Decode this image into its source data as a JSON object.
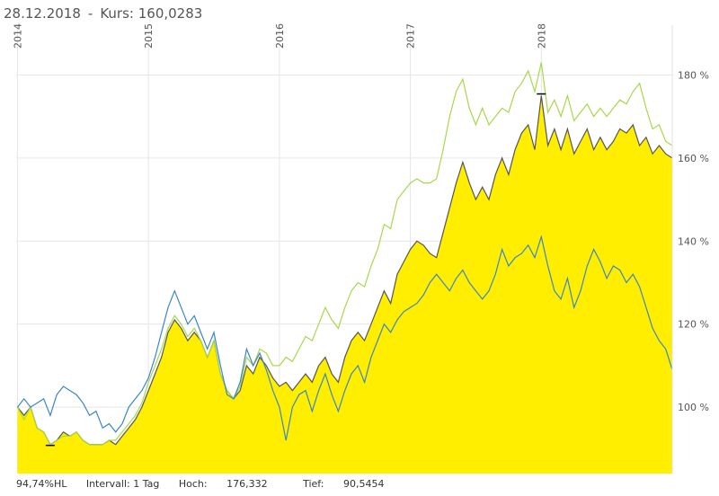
{
  "header": {
    "date": "28.12.2018",
    "separator": "-",
    "kurs_label": "Kurs:",
    "kurs_value": "160,0283"
  },
  "footer": {
    "hl_label": "94,74%HL",
    "interval": "Intervall: 1 Tag",
    "high_label": "Hoch:",
    "high_value": "176,332",
    "low_label": "Tief:",
    "low_value": "90,5454"
  },
  "chart_data": {
    "type": "area",
    "x_ticks": [
      "2014",
      "2015",
      "2016",
      "2017",
      "2018"
    ],
    "y_ticks": [
      "100 %",
      "120 %",
      "140 %",
      "160 %",
      "180 %"
    ],
    "ylim": [
      84,
      192
    ],
    "xlim": [
      2013.99,
      2019.0
    ],
    "grid": true,
    "colors": {
      "area_fill": "#ffee00",
      "area_line": "#555555",
      "green": "#a8d84a",
      "blue": "#3a86c8",
      "grid": "#e6e6e6"
    },
    "series": [
      {
        "style": "area",
        "points": [
          [
            2014.0,
            100
          ],
          [
            2014.05,
            98
          ],
          [
            2014.1,
            100
          ],
          [
            2014.15,
            95
          ],
          [
            2014.2,
            94
          ],
          [
            2014.25,
            91
          ],
          [
            2014.3,
            92
          ],
          [
            2014.35,
            94
          ],
          [
            2014.4,
            93
          ],
          [
            2014.45,
            94
          ],
          [
            2014.5,
            92
          ],
          [
            2014.55,
            91
          ],
          [
            2014.6,
            91
          ],
          [
            2014.65,
            91
          ],
          [
            2014.7,
            92
          ],
          [
            2014.75,
            91
          ],
          [
            2014.8,
            93
          ],
          [
            2014.85,
            95
          ],
          [
            2014.9,
            97
          ],
          [
            2014.95,
            100
          ],
          [
            2015.0,
            104
          ],
          [
            2015.05,
            108
          ],
          [
            2015.1,
            112
          ],
          [
            2015.15,
            118
          ],
          [
            2015.2,
            121
          ],
          [
            2015.25,
            119
          ],
          [
            2015.3,
            116
          ],
          [
            2015.35,
            118
          ],
          [
            2015.4,
            116
          ],
          [
            2015.45,
            112
          ],
          [
            2015.5,
            116
          ],
          [
            2015.55,
            108
          ],
          [
            2015.6,
            104
          ],
          [
            2015.65,
            102
          ],
          [
            2015.7,
            104
          ],
          [
            2015.75,
            110
          ],
          [
            2015.8,
            108
          ],
          [
            2015.85,
            112
          ],
          [
            2015.9,
            110
          ],
          [
            2015.95,
            107
          ],
          [
            2016.0,
            105
          ],
          [
            2016.05,
            106
          ],
          [
            2016.1,
            104
          ],
          [
            2016.15,
            106
          ],
          [
            2016.2,
            108
          ],
          [
            2016.25,
            106
          ],
          [
            2016.3,
            110
          ],
          [
            2016.35,
            112
          ],
          [
            2016.4,
            108
          ],
          [
            2016.45,
            106
          ],
          [
            2016.5,
            112
          ],
          [
            2016.55,
            116
          ],
          [
            2016.6,
            118
          ],
          [
            2016.65,
            116
          ],
          [
            2016.7,
            120
          ],
          [
            2016.75,
            124
          ],
          [
            2016.8,
            128
          ],
          [
            2016.85,
            125
          ],
          [
            2016.9,
            132
          ],
          [
            2016.95,
            135
          ],
          [
            2017.0,
            138
          ],
          [
            2017.05,
            140
          ],
          [
            2017.1,
            139
          ],
          [
            2017.15,
            137
          ],
          [
            2017.2,
            136
          ],
          [
            2017.25,
            142
          ],
          [
            2017.3,
            148
          ],
          [
            2017.35,
            154
          ],
          [
            2017.4,
            159
          ],
          [
            2017.45,
            154
          ],
          [
            2017.5,
            150
          ],
          [
            2017.55,
            153
          ],
          [
            2017.6,
            150
          ],
          [
            2017.65,
            156
          ],
          [
            2017.7,
            160
          ],
          [
            2017.75,
            156
          ],
          [
            2017.8,
            162
          ],
          [
            2017.85,
            166
          ],
          [
            2017.9,
            168
          ],
          [
            2017.95,
            162
          ],
          [
            2018.0,
            175
          ],
          [
            2018.05,
            163
          ],
          [
            2018.1,
            167
          ],
          [
            2018.15,
            162
          ],
          [
            2018.2,
            167
          ],
          [
            2018.25,
            161
          ],
          [
            2018.3,
            164
          ],
          [
            2018.35,
            167
          ],
          [
            2018.4,
            162
          ],
          [
            2018.45,
            165
          ],
          [
            2018.5,
            162
          ],
          [
            2018.55,
            164
          ],
          [
            2018.6,
            167
          ],
          [
            2018.65,
            166
          ],
          [
            2018.7,
            168
          ],
          [
            2018.75,
            163
          ],
          [
            2018.8,
            165
          ],
          [
            2018.85,
            161
          ],
          [
            2018.9,
            163
          ],
          [
            2018.95,
            161
          ],
          [
            2019.0,
            160
          ]
        ]
      },
      {
        "style": "line",
        "points": [
          [
            2014.0,
            100
          ],
          [
            2014.05,
            97
          ],
          [
            2014.1,
            100
          ],
          [
            2014.15,
            95
          ],
          [
            2014.2,
            94
          ],
          [
            2014.25,
            91
          ],
          [
            2014.3,
            92
          ],
          [
            2014.35,
            93
          ],
          [
            2014.4,
            93
          ],
          [
            2014.45,
            94
          ],
          [
            2014.5,
            92
          ],
          [
            2014.55,
            91
          ],
          [
            2014.6,
            91
          ],
          [
            2014.65,
            91
          ],
          [
            2014.7,
            92
          ],
          [
            2014.75,
            92
          ],
          [
            2014.8,
            94
          ],
          [
            2014.85,
            96
          ],
          [
            2014.9,
            98
          ],
          [
            2014.95,
            101
          ],
          [
            2015.0,
            106
          ],
          [
            2015.05,
            110
          ],
          [
            2015.1,
            114
          ],
          [
            2015.15,
            119
          ],
          [
            2015.2,
            122
          ],
          [
            2015.25,
            120
          ],
          [
            2015.3,
            117
          ],
          [
            2015.35,
            119
          ],
          [
            2015.4,
            116
          ],
          [
            2015.45,
            112
          ],
          [
            2015.5,
            116
          ],
          [
            2015.55,
            108
          ],
          [
            2015.6,
            104
          ],
          [
            2015.65,
            102
          ],
          [
            2015.7,
            105
          ],
          [
            2015.75,
            112
          ],
          [
            2015.8,
            110
          ],
          [
            2015.85,
            114
          ],
          [
            2015.9,
            113
          ],
          [
            2015.95,
            110
          ],
          [
            2016.0,
            110
          ],
          [
            2016.05,
            112
          ],
          [
            2016.1,
            111
          ],
          [
            2016.15,
            114
          ],
          [
            2016.2,
            117
          ],
          [
            2016.25,
            116
          ],
          [
            2016.3,
            120
          ],
          [
            2016.35,
            124
          ],
          [
            2016.4,
            121
          ],
          [
            2016.45,
            119
          ],
          [
            2016.5,
            124
          ],
          [
            2016.55,
            128
          ],
          [
            2016.6,
            130
          ],
          [
            2016.65,
            129
          ],
          [
            2016.7,
            134
          ],
          [
            2016.75,
            138
          ],
          [
            2016.8,
            144
          ],
          [
            2016.85,
            143
          ],
          [
            2016.9,
            150
          ],
          [
            2016.95,
            152
          ],
          [
            2017.0,
            154
          ],
          [
            2017.05,
            155
          ],
          [
            2017.1,
            154
          ],
          [
            2017.15,
            154
          ],
          [
            2017.2,
            155
          ],
          [
            2017.25,
            162
          ],
          [
            2017.3,
            170
          ],
          [
            2017.35,
            176
          ],
          [
            2017.4,
            179
          ],
          [
            2017.45,
            172
          ],
          [
            2017.5,
            168
          ],
          [
            2017.55,
            172
          ],
          [
            2017.6,
            168
          ],
          [
            2017.65,
            170
          ],
          [
            2017.7,
            172
          ],
          [
            2017.75,
            171
          ],
          [
            2017.8,
            176
          ],
          [
            2017.85,
            178
          ],
          [
            2017.9,
            181
          ],
          [
            2017.95,
            176
          ],
          [
            2018.0,
            183
          ],
          [
            2018.05,
            171
          ],
          [
            2018.1,
            174
          ],
          [
            2018.15,
            170
          ],
          [
            2018.2,
            175
          ],
          [
            2018.25,
            169
          ],
          [
            2018.3,
            171
          ],
          [
            2018.35,
            173
          ],
          [
            2018.4,
            170
          ],
          [
            2018.45,
            172
          ],
          [
            2018.5,
            170
          ],
          [
            2018.55,
            172
          ],
          [
            2018.6,
            174
          ],
          [
            2018.65,
            173
          ],
          [
            2018.7,
            176
          ],
          [
            2018.75,
            178
          ],
          [
            2018.8,
            172
          ],
          [
            2018.85,
            167
          ],
          [
            2018.9,
            168
          ],
          [
            2018.95,
            164
          ],
          [
            2019.0,
            163
          ]
        ]
      },
      {
        "style": "line",
        "points": [
          [
            2014.0,
            100
          ],
          [
            2014.05,
            102
          ],
          [
            2014.1,
            100
          ],
          [
            2014.15,
            101
          ],
          [
            2014.2,
            102
          ],
          [
            2014.25,
            98
          ],
          [
            2014.3,
            103
          ],
          [
            2014.35,
            105
          ],
          [
            2014.4,
            104
          ],
          [
            2014.45,
            103
          ],
          [
            2014.5,
            101
          ],
          [
            2014.55,
            98
          ],
          [
            2014.6,
            99
          ],
          [
            2014.65,
            95
          ],
          [
            2014.7,
            96
          ],
          [
            2014.75,
            94
          ],
          [
            2014.8,
            96
          ],
          [
            2014.85,
            100
          ],
          [
            2014.9,
            102
          ],
          [
            2014.95,
            104
          ],
          [
            2015.0,
            107
          ],
          [
            2015.05,
            112
          ],
          [
            2015.1,
            118
          ],
          [
            2015.15,
            124
          ],
          [
            2015.2,
            128
          ],
          [
            2015.25,
            124
          ],
          [
            2015.3,
            120
          ],
          [
            2015.35,
            122
          ],
          [
            2015.4,
            118
          ],
          [
            2015.45,
            114
          ],
          [
            2015.5,
            118
          ],
          [
            2015.55,
            110
          ],
          [
            2015.6,
            103
          ],
          [
            2015.65,
            102
          ],
          [
            2015.7,
            106
          ],
          [
            2015.75,
            114
          ],
          [
            2015.8,
            110
          ],
          [
            2015.85,
            113
          ],
          [
            2015.9,
            109
          ],
          [
            2015.95,
            104
          ],
          [
            2016.0,
            100
          ],
          [
            2016.05,
            92
          ],
          [
            2016.1,
            100
          ],
          [
            2016.15,
            103
          ],
          [
            2016.2,
            104
          ],
          [
            2016.25,
            99
          ],
          [
            2016.3,
            104
          ],
          [
            2016.35,
            108
          ],
          [
            2016.4,
            103
          ],
          [
            2016.45,
            99
          ],
          [
            2016.5,
            104
          ],
          [
            2016.55,
            108
          ],
          [
            2016.6,
            110
          ],
          [
            2016.65,
            106
          ],
          [
            2016.7,
            112
          ],
          [
            2016.75,
            116
          ],
          [
            2016.8,
            120
          ],
          [
            2016.85,
            118
          ],
          [
            2016.9,
            121
          ],
          [
            2016.95,
            123
          ],
          [
            2017.0,
            124
          ],
          [
            2017.05,
            125
          ],
          [
            2017.1,
            127
          ],
          [
            2017.15,
            130
          ],
          [
            2017.2,
            132
          ],
          [
            2017.25,
            130
          ],
          [
            2017.3,
            128
          ],
          [
            2017.35,
            131
          ],
          [
            2017.4,
            133
          ],
          [
            2017.45,
            130
          ],
          [
            2017.5,
            128
          ],
          [
            2017.55,
            126
          ],
          [
            2017.6,
            128
          ],
          [
            2017.65,
            132
          ],
          [
            2017.7,
            138
          ],
          [
            2017.75,
            134
          ],
          [
            2017.8,
            136
          ],
          [
            2017.85,
            137
          ],
          [
            2017.9,
            139
          ],
          [
            2017.95,
            136
          ],
          [
            2018.0,
            141
          ],
          [
            2018.05,
            134
          ],
          [
            2018.1,
            128
          ],
          [
            2018.15,
            126
          ],
          [
            2018.2,
            131
          ],
          [
            2018.25,
            124
          ],
          [
            2018.3,
            128
          ],
          [
            2018.35,
            134
          ],
          [
            2018.4,
            138
          ],
          [
            2018.45,
            135
          ],
          [
            2018.5,
            131
          ],
          [
            2018.55,
            134
          ],
          [
            2018.6,
            133
          ],
          [
            2018.65,
            130
          ],
          [
            2018.7,
            132
          ],
          [
            2018.75,
            129
          ],
          [
            2018.8,
            124
          ],
          [
            2018.85,
            119
          ],
          [
            2018.9,
            116
          ],
          [
            2018.95,
            114
          ],
          [
            2019.0,
            109
          ]
        ]
      }
    ]
  }
}
